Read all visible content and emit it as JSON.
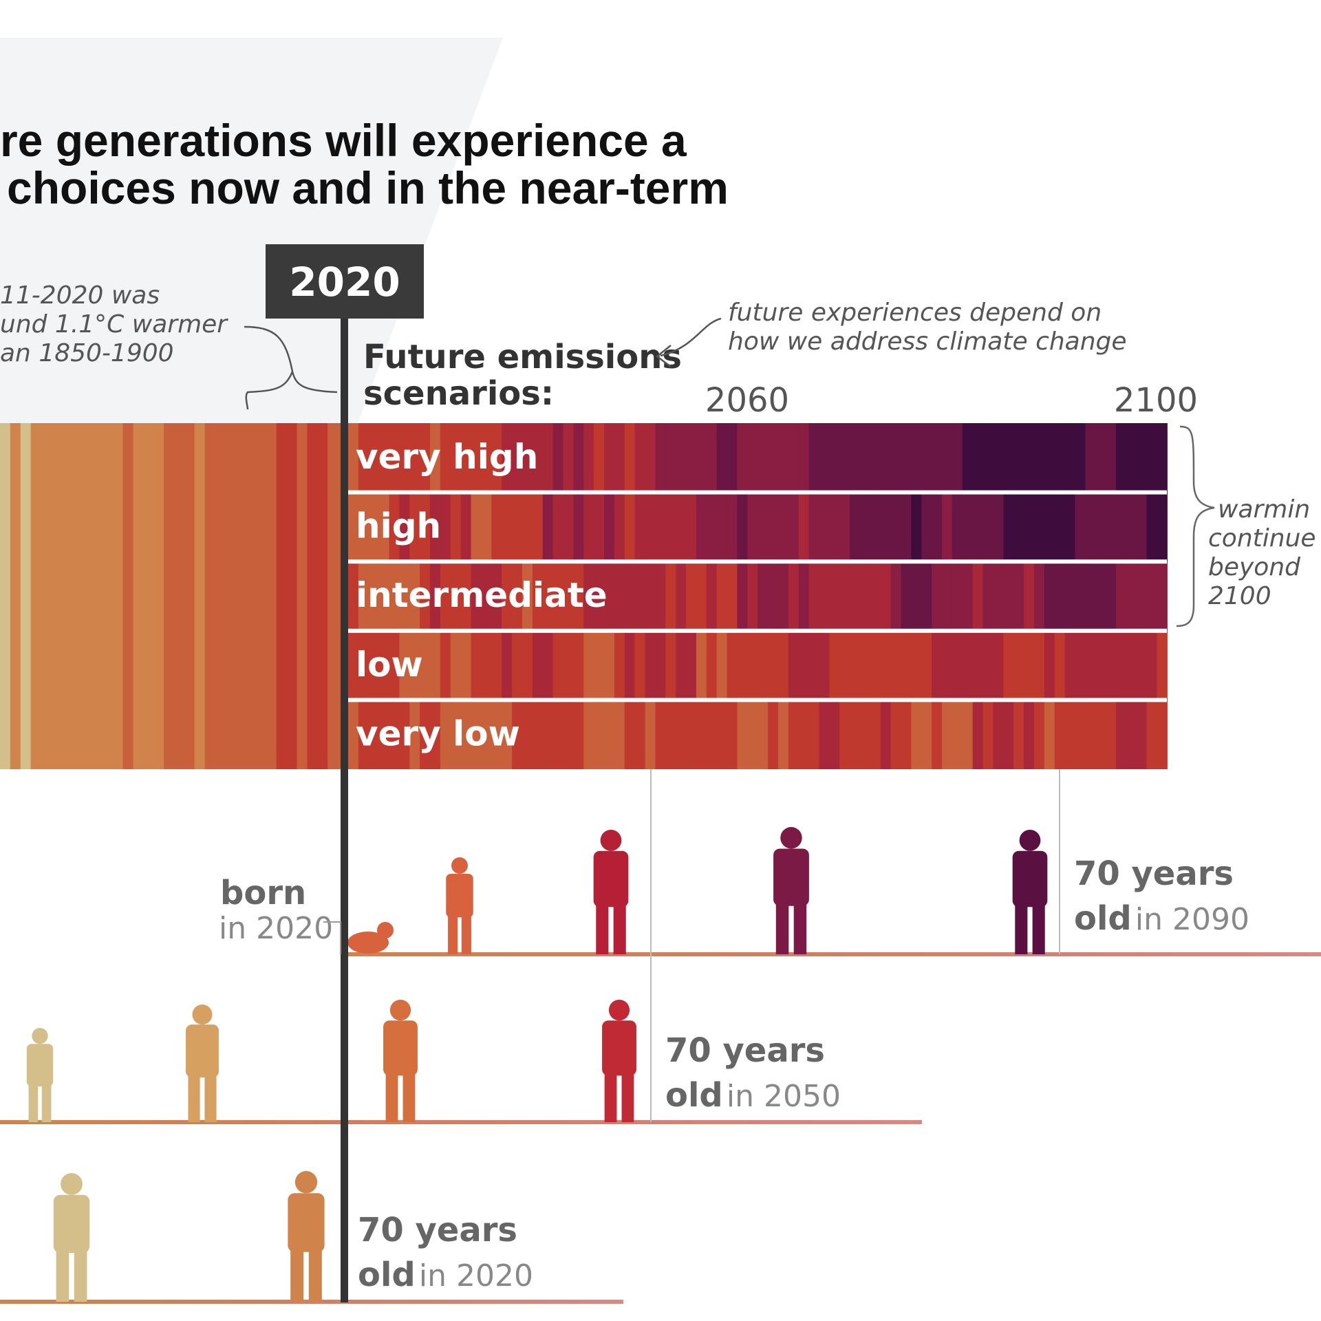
{
  "title": {
    "lines": [
      "re generations will experience a",
      "choices now and in the near-term"
    ]
  },
  "year_marker": "2020",
  "past_note": {
    "lines": [
      "11-2020 was",
      "und 1.1°C warmer",
      "an 1850-1900"
    ]
  },
  "scenarios_heading": {
    "lines": [
      "Future emissions",
      "scenarios:"
    ]
  },
  "future_note": {
    "lines": [
      "future experiences depend on",
      "how we address climate change"
    ]
  },
  "axis_labels": [
    "2060",
    "2100"
  ],
  "scenarios": [
    "very high",
    "high",
    "intermediate",
    "low",
    "very low"
  ],
  "warming_note": {
    "lines": [
      "warmin",
      "continue",
      "beyond",
      "2100"
    ]
  },
  "generations": [
    {
      "line1": "born",
      "line2": "in 2020"
    },
    {
      "line1": "70 years",
      "line2_bold": "old",
      "line2": "in 2090"
    },
    {
      "line1": "70 years",
      "line2_bold": "old",
      "line2": "in 2050"
    },
    {
      "line1": "70 years",
      "line2_bold": "old",
      "line2": "in 2020"
    }
  ]
}
